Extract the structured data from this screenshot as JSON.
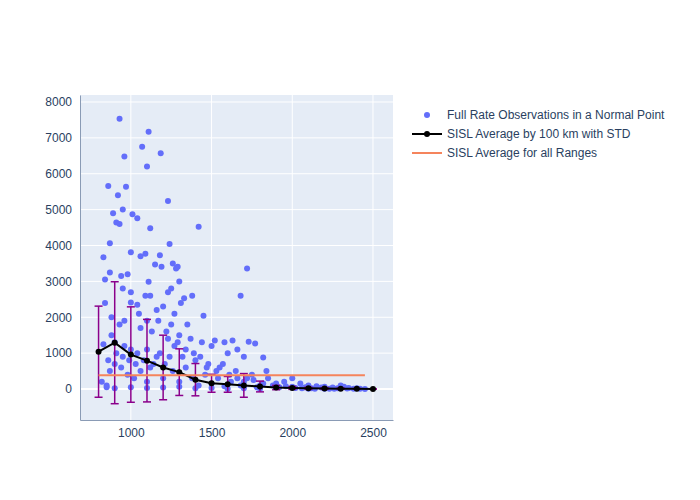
{
  "chart_data": {
    "type": "scatter",
    "xlim": [
      685,
      2624
    ],
    "ylim": [
      -864,
      8195
    ],
    "xticks": [
      1000,
      1500,
      2000,
      2500
    ],
    "yticks": [
      0,
      1000,
      2000,
      3000,
      4000,
      5000,
      6000,
      7000,
      8000
    ],
    "grid": true,
    "legend": "right",
    "series": [
      {
        "name": "Full Rate Observations in a Normal Point",
        "type": "scatter",
        "marker": "circle",
        "color": "#636EFA",
        "x": [
          930,
          1110,
          960,
          1070,
          1185,
          1100,
          860,
          970,
          920,
          1230,
          890,
          950,
          1010,
          1040,
          910,
          930,
          1120,
          1420,
          870,
          1240,
          830,
          1000,
          1060,
          1090,
          1180,
          1260,
          1150,
          1190,
          1290,
          1720,
          940,
          980,
          870,
          840,
          1280,
          1300,
          1110,
          1250,
          1330,
          1380,
          1680,
          840,
          1000,
          1040,
          1090,
          1120,
          950,
          1000,
          1230,
          1310,
          1450,
          1200,
          1160,
          1270,
          1050,
          880,
          960,
          1100,
          1170,
          1250,
          1350,
          930,
          1060,
          1130,
          1220,
          1300,
          1370,
          1440,
          1500,
          1580,
          1630,
          1520,
          1770,
          1730,
          1600,
          1660,
          1700,
          1820,
          1840,
          880,
          900,
          960,
          1000,
          1040,
          1100,
          1180,
          1240,
          1320,
          1400,
          1480,
          1550,
          1650,
          1750,
          1850,
          1950,
          2000,
          2050,
          2100,
          2150,
          2200,
          2250,
          2300,
          2350,
          2400,
          820,
          850,
          870,
          900,
          940,
          980,
          1020,
          1060,
          1100,
          1140,
          1200,
          1260,
          1300,
          1340,
          1380,
          1420,
          1460,
          1500,
          1540,
          1580,
          1620,
          1680,
          1720,
          1780,
          1820,
          1880,
          1920,
          1960,
          2020,
          2080,
          2120,
          2180,
          2230,
          2280,
          2320,
          2380,
          2420,
          830,
          860,
          910,
          950,
          990,
          1030,
          1080,
          1120,
          1160,
          1210,
          1270,
          1290,
          1230,
          1340,
          1390,
          1430,
          1470,
          1530,
          1570,
          1610,
          1660,
          1700,
          1760,
          1800,
          1900,
          2000,
          2060,
          2140,
          2200,
          2260,
          2340,
          850,
          900,
          1000,
          1100,
          1200,
          1300,
          1400,
          1500,
          1600,
          1700,
          1800,
          2100,
          2450
        ],
        "values": [
          7530,
          7170,
          6480,
          6750,
          6570,
          6200,
          5660,
          5640,
          5400,
          5240,
          4900,
          5000,
          4870,
          4760,
          4640,
          4600,
          4480,
          4520,
          4060,
          4040,
          3670,
          3810,
          3700,
          3770,
          3730,
          3500,
          3470,
          3410,
          3410,
          3360,
          3150,
          3200,
          3250,
          3050,
          3360,
          3000,
          2990,
          2800,
          2530,
          2600,
          2600,
          2400,
          2410,
          2350,
          2600,
          2600,
          2800,
          2700,
          2700,
          2400,
          2040,
          2300,
          2200,
          2100,
          2100,
          2000,
          1900,
          1900,
          1900,
          1800,
          1800,
          1800,
          1700,
          1600,
          1600,
          1500,
          1400,
          1300,
          1200,
          1300,
          1350,
          1350,
          1270,
          1320,
          1000,
          1100,
          900,
          880,
          500,
          1500,
          1300,
          1200,
          1100,
          1000,
          1100,
          1000,
          900,
          900,
          800,
          700,
          600,
          500,
          400,
          300,
          200,
          300,
          150,
          100,
          80,
          60,
          40,
          100,
          30,
          20,
          200,
          100,
          500,
          700,
          600,
          400,
          300,
          500,
          200,
          700,
          300,
          500,
          200,
          600,
          300,
          100,
          400,
          150,
          300,
          80,
          200,
          100,
          300,
          50,
          150,
          100,
          50,
          80,
          30,
          50,
          20,
          40,
          10,
          20,
          60,
          10,
          5,
          1250,
          800,
          1000,
          900,
          800,
          700,
          800,
          600,
          900,
          700,
          1200,
          1300,
          1400,
          1100,
          1000,
          900,
          600,
          500,
          700,
          400,
          300,
          200,
          250,
          100,
          150,
          60,
          20,
          10,
          5,
          8,
          12,
          50,
          20,
          50,
          30,
          40,
          60,
          20,
          30,
          10,
          20,
          10,
          5,
          2
        ]
      },
      {
        "name": "SISL Average by 100 km with STD",
        "type": "line",
        "marker": "circle",
        "color": "#000000",
        "x": [
          800,
          900,
          1000,
          1100,
          1200,
          1300,
          1400,
          1500,
          1600,
          1700,
          1800,
          1900,
          2000,
          2100,
          2200,
          2300,
          2400,
          2500
        ],
        "values": [
          1040,
          1290,
          960,
          790,
          600,
          470,
          260,
          160,
          130,
          100,
          70,
          40,
          30,
          20,
          15,
          10,
          5,
          0
        ],
        "error": [
          1270,
          1700,
          1330,
          1150,
          900,
          650,
          450,
          250,
          220,
          330,
          150,
          60,
          40,
          30,
          25,
          20,
          10,
          0
        ]
      },
      {
        "name": "SISL Average for all Ranges",
        "type": "line",
        "marker": "none",
        "color": "#F5845C",
        "x": [
          800,
          2450
        ],
        "values": [
          380,
          380
        ]
      }
    ]
  }
}
